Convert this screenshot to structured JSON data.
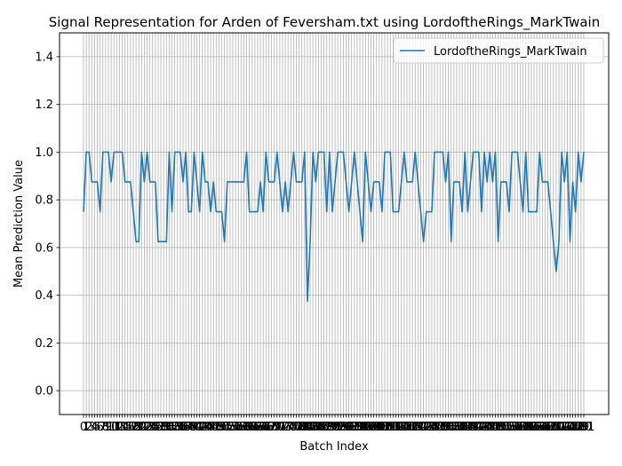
{
  "chart_data": {
    "type": "line",
    "title": "Signal Representation for Arden of Feversham.txt using LordoftheRings_MarkTwain",
    "xlabel": "Batch Index",
    "ylabel": "Mean Prediction Value",
    "ylim": [
      -0.1,
      1.5
    ],
    "yticks": [
      "0.0",
      "0.2",
      "0.4",
      "0.6",
      "0.8",
      "1.0",
      "1.2",
      "1.4"
    ],
    "ytick_values": [
      0.0,
      0.2,
      0.4,
      0.6,
      0.8,
      1.0,
      1.2,
      1.4
    ],
    "grid": true,
    "legend_position": "top-right",
    "series": [
      {
        "name": "LordoftheRings_MarkTwain",
        "color": "#1f77b4",
        "values": [
          0.75,
          1.0,
          1.0,
          0.875,
          0.875,
          0.875,
          0.75,
          1.0,
          1.0,
          1.0,
          0.875,
          1.0,
          1.0,
          1.0,
          1.0,
          0.875,
          0.875,
          0.875,
          0.75,
          0.625,
          0.625,
          1.0,
          0.875,
          1.0,
          0.875,
          0.875,
          0.875,
          0.625,
          0.625,
          0.625,
          0.625,
          1.0,
          0.75,
          1.0,
          1.0,
          1.0,
          0.875,
          1.0,
          0.75,
          0.75,
          1.0,
          0.875,
          0.75,
          1.0,
          0.875,
          0.875,
          0.75,
          0.875,
          0.75,
          0.75,
          0.75,
          0.625,
          0.875,
          0.875,
          0.875,
          0.875,
          0.875,
          0.875,
          0.875,
          1.0,
          0.75,
          0.75,
          0.75,
          0.75,
          0.875,
          0.75,
          1.0,
          0.875,
          0.875,
          0.875,
          1.0,
          0.875,
          0.75,
          0.875,
          0.75,
          0.875,
          1.0,
          0.875,
          0.875,
          0.875,
          1.0,
          0.375,
          0.625,
          1.0,
          0.875,
          1.0,
          1.0,
          1.0,
          0.75,
          1.0,
          0.75,
          0.875,
          1.0,
          1.0,
          1.0,
          0.875,
          0.75,
          0.875,
          1.0,
          0.875,
          0.75,
          0.625,
          1.0,
          0.875,
          0.75,
          0.875,
          0.875,
          0.875,
          0.75,
          1.0,
          1.0,
          1.0,
          0.75,
          0.75,
          0.75,
          0.875,
          1.0,
          0.875,
          0.875,
          0.875,
          1.0,
          0.875,
          0.75,
          0.625,
          0.75,
          0.75,
          0.75,
          1.0,
          1.0,
          1.0,
          1.0,
          0.875,
          1.0,
          0.625,
          0.875,
          0.875,
          0.875,
          0.75,
          1.0,
          0.75,
          0.875,
          1.0,
          1.0,
          1.0,
          0.75,
          1.0,
          0.875,
          1.0,
          0.875,
          1.0,
          0.625,
          0.875,
          0.875,
          0.875,
          0.75,
          1.0,
          1.0,
          1.0,
          0.875,
          0.75,
          1.0,
          0.75,
          0.75,
          0.75,
          0.75,
          1.0,
          0.875,
          0.875,
          0.875,
          0.75,
          0.625,
          0.5,
          0.625,
          1.0,
          0.875,
          1.0,
          0.625,
          0.875,
          0.75,
          1.0,
          0.875,
          1.0
        ]
      }
    ]
  }
}
